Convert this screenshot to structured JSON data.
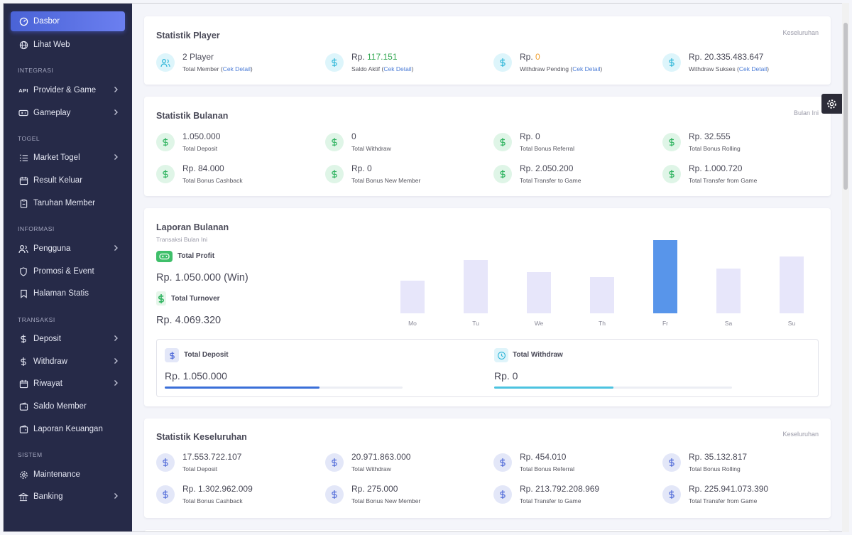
{
  "sidebar": {
    "items": [
      {
        "label": "Dasbor",
        "icon": "gauge-icon"
      },
      {
        "label": "Lihat Web",
        "icon": "globe-icon"
      },
      {
        "label": "Provider & Game",
        "icon": "api-icon",
        "badge": "API"
      },
      {
        "label": "Gameplay",
        "icon": "gamepad-icon"
      },
      {
        "label": "Market Togel",
        "icon": "list-icon"
      },
      {
        "label": "Result Keluar",
        "icon": "calendar-icon"
      },
      {
        "label": "Taruhan Member",
        "icon": "clipboard-icon"
      },
      {
        "label": "Pengguna",
        "icon": "users-icon"
      },
      {
        "label": "Promosi & Event",
        "icon": "shield-icon"
      },
      {
        "label": "Halaman Statis",
        "icon": "bookmark-icon"
      },
      {
        "label": "Deposit",
        "icon": "dollar-icon"
      },
      {
        "label": "Withdraw",
        "icon": "dollar-icon"
      },
      {
        "label": "Riwayat",
        "icon": "calendar-icon"
      },
      {
        "label": "Saldo Member",
        "icon": "wallet-icon"
      },
      {
        "label": "Laporan Keuangan",
        "icon": "wallet-icon"
      },
      {
        "label": "Maintenance",
        "icon": "gear-icon"
      },
      {
        "label": "Banking",
        "icon": "bank-icon"
      }
    ],
    "sections": [
      "INTEGRASI",
      "TOGEL",
      "INFORMASI",
      "TRANSAKSI",
      "SISTEM"
    ]
  },
  "player": {
    "title": "Statistik Player",
    "right": "Keseluruhan",
    "stats": [
      {
        "prefix": "",
        "value": "2 Player",
        "label": "Total Member",
        "link": "Cek Detail"
      },
      {
        "prefix": "Rp. ",
        "value": "117.151",
        "label": "Saldo Aktif",
        "link": "Cek Detail"
      },
      {
        "prefix": "Rp. ",
        "value": "0",
        "label": "Withdraw Pending",
        "link": "Cek Detail"
      },
      {
        "prefix": "",
        "value": "Rp. 20.335.483.647",
        "label": "Withdraw Sukses",
        "link": "Cek Detail"
      }
    ]
  },
  "monthly": {
    "title": "Statistik Bulanan",
    "right": "Bulan Ini",
    "stats": [
      {
        "value": "1.050.000",
        "label": "Total Deposit"
      },
      {
        "value": "0",
        "label": "Total Withdraw"
      },
      {
        "value": "Rp. 0",
        "label": "Total Bonus Referral"
      },
      {
        "value": "Rp. 32.555",
        "label": "Total Bonus Rolling"
      },
      {
        "value": "Rp. 84.000",
        "label": "Total Bonus Cashback"
      },
      {
        "value": "Rp. 0",
        "label": "Total Bonus New Member"
      },
      {
        "value": "Rp. 2.050.200",
        "label": "Total Transfer to Game"
      },
      {
        "value": "Rp. 1.000.720",
        "label": "Total Transfer from Game"
      }
    ]
  },
  "report": {
    "title": "Laporan Bulanan",
    "subtitle": "Transaksi Bulan Ini",
    "profit_label": "Total Profit",
    "profit_value": "Rp. 1.050.000 (Win)",
    "turnover_label": "Total Turnover",
    "turnover_value": "Rp. 4.069.320",
    "deposit_label": "Total Deposit",
    "deposit_value": "Rp. 1.050.000",
    "deposit_progress": 0.65,
    "withdraw_label": "Total Withdraw",
    "withdraw_value": "Rp. 0",
    "withdraw_progress": 0.5
  },
  "chart_data": {
    "type": "bar",
    "categories": [
      "Mo",
      "Tu",
      "We",
      "Th",
      "Fr",
      "Sa",
      "Su"
    ],
    "values": [
      45,
      73,
      56,
      50,
      100,
      61,
      78
    ],
    "highlight": "Fr",
    "colors": {
      "bar": "#e7e6fa",
      "highlight": "#5895ea"
    },
    "title": "",
    "xlabel": "",
    "ylabel": ""
  },
  "overall": {
    "title": "Statistik Keseluruhan",
    "right": "Keseluruhan",
    "stats": [
      {
        "value": "17.553.722.107",
        "label": "Total Deposit"
      },
      {
        "value": "20.971.863.000",
        "label": "Total Withdraw"
      },
      {
        "value": "Rp. 454.010",
        "label": "Total Bonus Referral"
      },
      {
        "value": "Rp. 35.132.817",
        "label": "Total Bonus Rolling"
      },
      {
        "value": "Rp. 1.302.962.009",
        "label": "Total Bonus Cashback"
      },
      {
        "value": "Rp. 275.000",
        "label": "Total Bonus New Member"
      },
      {
        "value": "Rp. 213.792.208.969",
        "label": "Total Transfer to Game"
      },
      {
        "value": "Rp. 225.941.073.390",
        "label": "Total Transfer from Game"
      }
    ]
  }
}
